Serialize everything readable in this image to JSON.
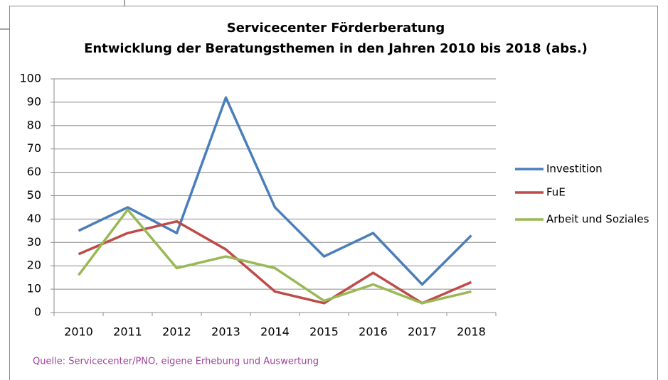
{
  "chart_data": {
    "type": "line",
    "title": "Servicecenter Förderberatung",
    "subtitle": "Entwicklung der Beratungsthemen in den Jahren 2010 bis 2018 (abs.)",
    "categories": [
      "2010",
      "2011",
      "2012",
      "2013",
      "2014",
      "2015",
      "2016",
      "2017",
      "2018"
    ],
    "series": [
      {
        "name": "Investition",
        "color": "#4a7ebb",
        "values": [
          35,
          45,
          34,
          92,
          45,
          24,
          34,
          12,
          33
        ]
      },
      {
        "name": "FuE",
        "color": "#be4b48",
        "values": [
          25,
          34,
          39,
          27,
          9,
          4,
          17,
          4,
          13
        ]
      },
      {
        "name": "Arbeit und Soziales",
        "color": "#98b954",
        "values": [
          16,
          44,
          19,
          24,
          19,
          5,
          12,
          4,
          9
        ]
      }
    ],
    "ylim": [
      0,
      100
    ],
    "yticks": [
      0,
      10,
      20,
      30,
      40,
      50,
      60,
      70,
      80,
      90,
      100
    ],
    "grid": true,
    "legend": "right",
    "source": "Quelle: Servicecenter/PNO, eigene Erhebung und Auswertung"
  }
}
